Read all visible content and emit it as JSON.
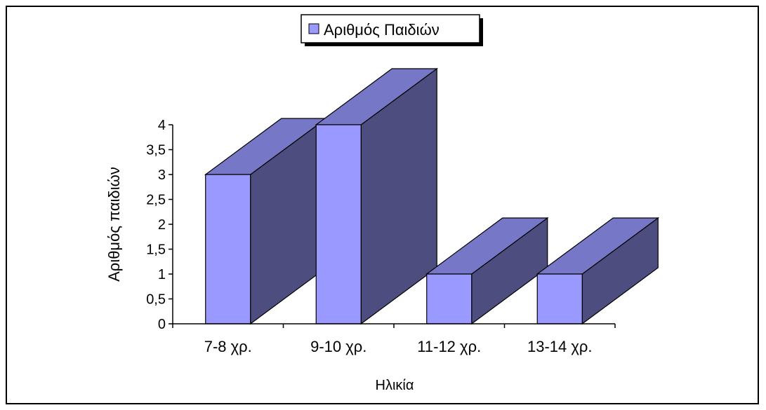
{
  "chart_data": {
    "type": "bar",
    "title": "",
    "xlabel": "Ηλικία",
    "ylabel": "Αριθμός παιδιών",
    "categories": [
      "7-8 χρ.",
      "9-10 χρ.",
      "11-12 χρ.",
      "13-14 χρ."
    ],
    "series": [
      {
        "name": "Αριθμός Παιδιών",
        "values": [
          3,
          4,
          1,
          1
        ]
      }
    ],
    "ylim": [
      0,
      4
    ],
    "yticks": [
      "0",
      "0,5",
      "1",
      "1,5",
      "2",
      "2,5",
      "3",
      "3,5",
      "4"
    ],
    "grid": false,
    "legend_position": "top",
    "three_d": true,
    "colors": {
      "front": "#9999ff",
      "top": "#7777c7",
      "side": "#4d4d7f",
      "outline": "#000000"
    }
  }
}
